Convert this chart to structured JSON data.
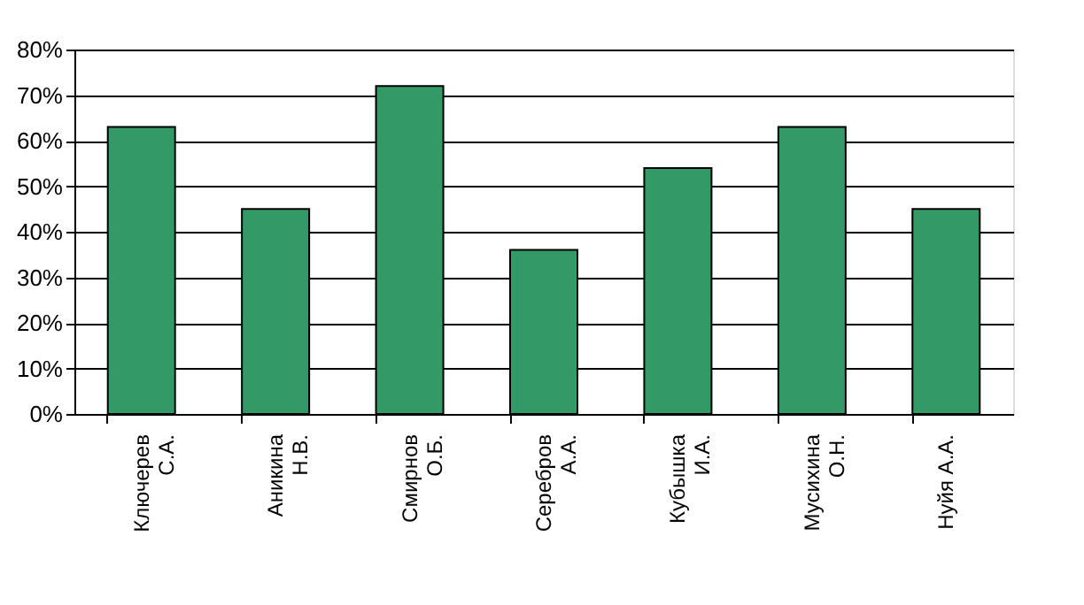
{
  "chart_data": {
    "type": "bar",
    "categories": [
      "Ключерев\nС.А.",
      "Аникина\nН.В.",
      "Смирнов\nО.Б.",
      "Серебров\nА.А.",
      "Кубышка\nИ.А.",
      "Мусихина\nО.Н.",
      "Нуйя А.А."
    ],
    "values": [
      63,
      45,
      72,
      36,
      54,
      63,
      45
    ],
    "color": "#339966",
    "ylim": [
      0,
      80
    ],
    "yticks": [
      {
        "value": 0,
        "label": "0%"
      },
      {
        "value": 10,
        "label": "10%"
      },
      {
        "value": 20,
        "label": "20%"
      },
      {
        "value": 30,
        "label": "30%"
      },
      {
        "value": 40,
        "label": "40%"
      },
      {
        "value": 50,
        "label": "50%"
      },
      {
        "value": 60,
        "label": "60%"
      },
      {
        "value": 70,
        "label": "70%"
      },
      {
        "value": 80,
        "label": "80%"
      }
    ],
    "grid": "y"
  }
}
